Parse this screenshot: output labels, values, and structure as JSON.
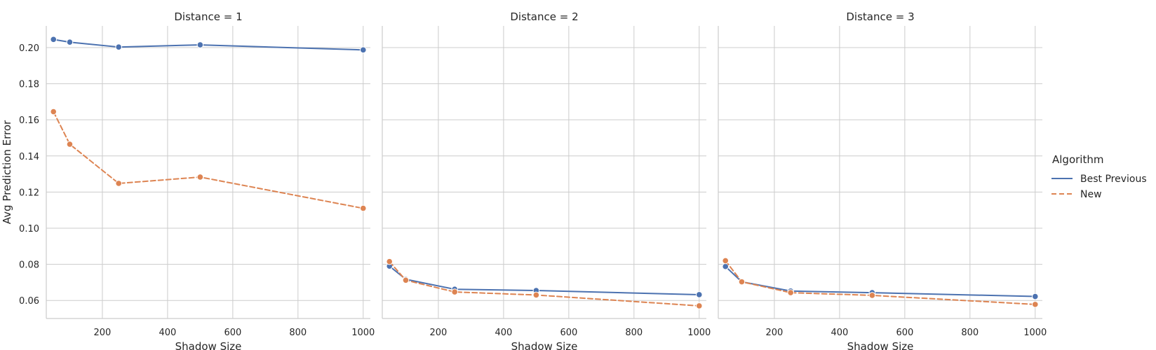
{
  "chart_data": {
    "type": "line",
    "panels": [
      {
        "title": "Distance = 1",
        "x": [
          50,
          100,
          250,
          500,
          1000
        ],
        "series": [
          {
            "name": "Best Previous",
            "values": [
              0.2045,
              0.203,
              0.2003,
              0.2015,
              0.1987
            ]
          },
          {
            "name": "New",
            "values": [
              0.1645,
              0.1465,
              0.1248,
              0.1283,
              0.111
            ]
          }
        ]
      },
      {
        "title": "Distance = 2",
        "x": [
          50,
          100,
          250,
          500,
          1000
        ],
        "series": [
          {
            "name": "Best Previous",
            "values": [
              0.079,
              0.0717,
              0.0662,
              0.0655,
              0.0632
            ]
          },
          {
            "name": "New",
            "values": [
              0.0815,
              0.0712,
              0.0647,
              0.063,
              0.057
            ]
          }
        ]
      },
      {
        "title": "Distance = 3",
        "x": [
          50,
          100,
          250,
          500,
          1000
        ],
        "series": [
          {
            "name": "Best Previous",
            "values": [
              0.0788,
              0.0703,
              0.0652,
              0.0643,
              0.0622
            ]
          },
          {
            "name": "New",
            "values": [
              0.082,
              0.0703,
              0.0643,
              0.0628,
              0.0578
            ]
          }
        ]
      }
    ],
    "xlabel": "Shadow Size",
    "ylabel": "Avg Prediction Error",
    "xlim": [
      28,
      1022
    ],
    "ylim": [
      0.05,
      0.212
    ],
    "xticks": [
      200,
      400,
      600,
      800,
      1000
    ],
    "yticks": [
      0.06,
      0.08,
      0.1,
      0.12,
      0.14,
      0.16,
      0.18,
      0.2
    ],
    "ytick_labels": [
      "0.06",
      "0.08",
      "0.10",
      "0.12",
      "0.14",
      "0.16",
      "0.18",
      "0.20"
    ],
    "grid": true,
    "legend": {
      "title": "Algorithm",
      "placement": "right",
      "entries": [
        "Best Previous",
        "New"
      ]
    },
    "colors": {
      "Best Previous": "#4c72b0",
      "New": "#dd8452"
    },
    "line_styles": {
      "Best Previous": "solid",
      "New": "dashed"
    }
  }
}
